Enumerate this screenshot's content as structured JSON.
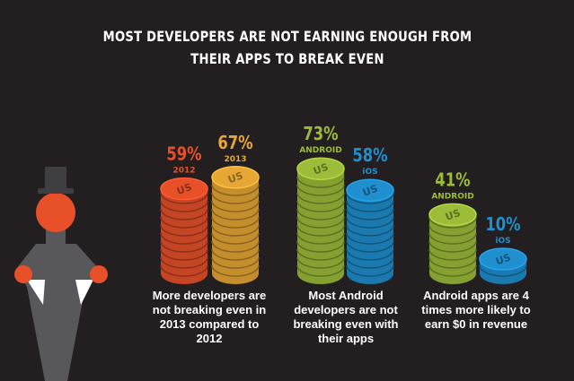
{
  "title": "MOST DEVELOPERS ARE NOT EARNING ENOUGH FROM THEIR APPS TO BREAK EVEN",
  "coin_label": "US",
  "chart_data": [
    {
      "type": "coins",
      "categories": [
        "2012",
        "2013"
      ],
      "values": [
        59,
        67
      ],
      "value_labels": [
        "59%",
        "67%"
      ],
      "colors": [
        "#e8502a",
        "#e6a735"
      ],
      "caption": "More developers are not breaking even in 2013 compared to 2012"
    },
    {
      "type": "coins",
      "categories": [
        "ANDROID",
        "iOS"
      ],
      "values": [
        73,
        58
      ],
      "value_labels": [
        "73%",
        "58%"
      ],
      "colors": [
        "#9cbc3a",
        "#1f8fcf"
      ],
      "caption": "Most Android developers are not breaking even with their apps"
    },
    {
      "type": "coins",
      "categories": [
        "ANDROID",
        "iOS"
      ],
      "values": [
        41,
        10
      ],
      "value_labels": [
        "41%",
        "10%"
      ],
      "colors": [
        "#9cbc3a",
        "#1f8fcf"
      ],
      "caption": "Android apps are 4 times more likely to earn $0 in revenue"
    }
  ]
}
